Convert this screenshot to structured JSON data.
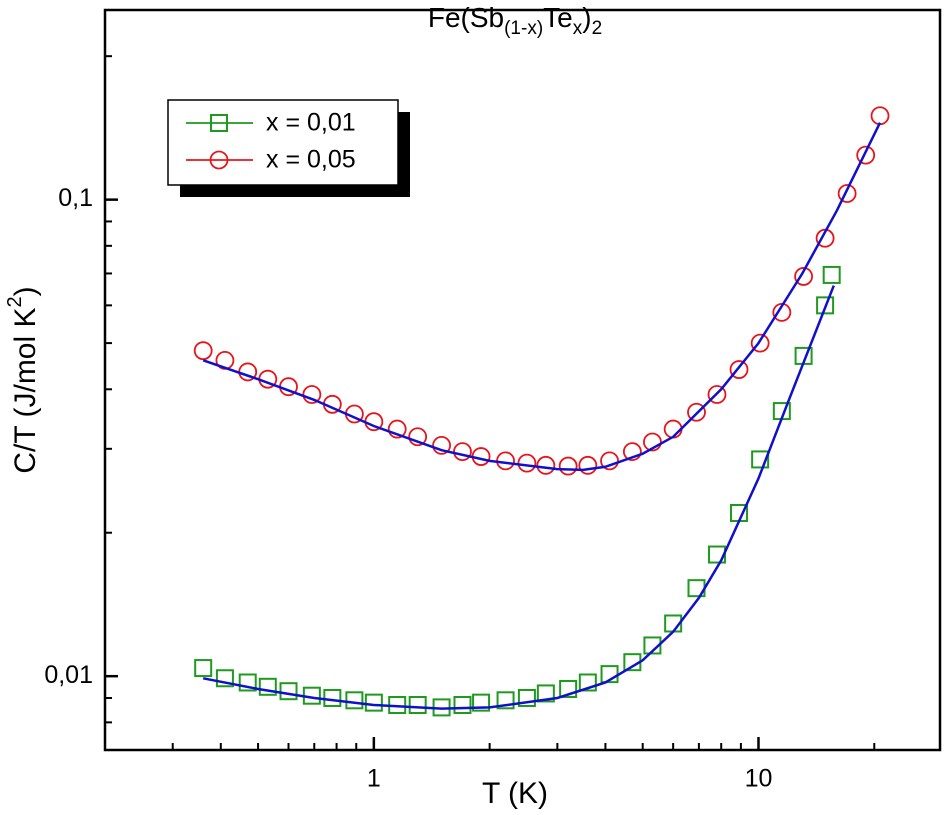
{
  "chart_data": {
    "type": "scatter",
    "title_parts": [
      {
        "text": "Fe(Sb"
      },
      {
        "text": "(1-x)",
        "sub": true
      },
      {
        "text": "Te"
      },
      {
        "text": "x",
        "sub": true
      },
      {
        "text": ")"
      },
      {
        "text": "2",
        "sub": true
      }
    ],
    "xlabel": "T (K)",
    "ylabel_parts": [
      {
        "text": "C/T (J/mol K"
      },
      {
        "text": "2",
        "sup": true
      },
      {
        "text": ")"
      }
    ],
    "log_x": true,
    "log_y": true,
    "xlim": [
      0.2,
      30
    ],
    "ylim": [
      0.007,
      0.25
    ],
    "xticks": [
      1,
      10
    ],
    "yticks": [
      {
        "value": 0.01,
        "label": "0,01"
      },
      {
        "value": 0.1,
        "label": "0,1"
      }
    ],
    "xminor": [
      0.3,
      0.4,
      0.5,
      0.6,
      0.7,
      0.8,
      0.9,
      2,
      3,
      4,
      5,
      6,
      7,
      8,
      9,
      20
    ],
    "yminor": [
      0.008,
      0.009,
      0.02,
      0.03,
      0.04,
      0.05,
      0.06,
      0.07,
      0.08,
      0.09,
      0.2
    ],
    "legend": "upper left",
    "series": [
      {
        "name": "x = 0,01",
        "color": "#1e9a1e",
        "marker": "square",
        "x": [
          0.36,
          0.41,
          0.47,
          0.53,
          0.6,
          0.69,
          0.78,
          0.89,
          1.0,
          1.15,
          1.3,
          1.5,
          1.7,
          1.9,
          2.2,
          2.5,
          2.8,
          3.2,
          3.6,
          4.1,
          4.7,
          5.3,
          6.0,
          6.9,
          7.8,
          8.9,
          10.1,
          11.5,
          13.1,
          14.9,
          15.5
        ],
        "values": [
          0.0104,
          0.0099,
          0.0097,
          0.0095,
          0.0093,
          0.0091,
          0.009,
          0.0089,
          0.0088,
          0.0087,
          0.0087,
          0.0086,
          0.0087,
          0.0088,
          0.0089,
          0.009,
          0.0092,
          0.0094,
          0.0097,
          0.0101,
          0.0107,
          0.0116,
          0.0129,
          0.0153,
          0.018,
          0.022,
          0.0285,
          0.036,
          0.047,
          0.06,
          0.0695
        ],
        "fit": {
          "color": "#1010cc",
          "x": [
            0.36,
            0.5,
            0.7,
            1,
            1.5,
            2,
            3,
            4,
            5,
            6,
            7,
            8,
            10,
            12,
            15.7
          ],
          "values": [
            0.0099,
            0.0094,
            0.009,
            0.0087,
            0.00855,
            0.0086,
            0.009,
            0.0097,
            0.0108,
            0.0124,
            0.0146,
            0.0175,
            0.026,
            0.038,
            0.066
          ]
        }
      },
      {
        "name": "x = 0,05",
        "color": "#e8141a",
        "marker": "circle",
        "x": [
          0.36,
          0.41,
          0.47,
          0.53,
          0.6,
          0.69,
          0.78,
          0.89,
          1.0,
          1.15,
          1.3,
          1.5,
          1.7,
          1.9,
          2.2,
          2.5,
          2.8,
          3.2,
          3.6,
          4.1,
          4.7,
          5.3,
          6.0,
          6.9,
          7.8,
          8.9,
          10.1,
          11.5,
          13.1,
          14.9,
          17,
          19,
          20.7
        ],
        "values": [
          0.0482,
          0.046,
          0.0435,
          0.042,
          0.0405,
          0.039,
          0.0372,
          0.0355,
          0.0342,
          0.033,
          0.0318,
          0.0305,
          0.0296,
          0.0289,
          0.0283,
          0.028,
          0.0277,
          0.0276,
          0.0277,
          0.0283,
          0.0296,
          0.031,
          0.033,
          0.0358,
          0.039,
          0.044,
          0.05,
          0.058,
          0.069,
          0.083,
          0.103,
          0.124,
          0.15
        ],
        "fit": {
          "color": "#1010cc",
          "x": [
            0.36,
            0.5,
            0.7,
            1,
            1.5,
            2,
            3,
            3.5,
            4,
            5,
            6,
            8,
            10,
            13,
            16,
            20.7
          ],
          "values": [
            0.046,
            0.042,
            0.038,
            0.0335,
            0.0298,
            0.0283,
            0.0272,
            0.0271,
            0.0275,
            0.0293,
            0.0318,
            0.04,
            0.05,
            0.07,
            0.095,
            0.145
          ]
        }
      }
    ]
  }
}
